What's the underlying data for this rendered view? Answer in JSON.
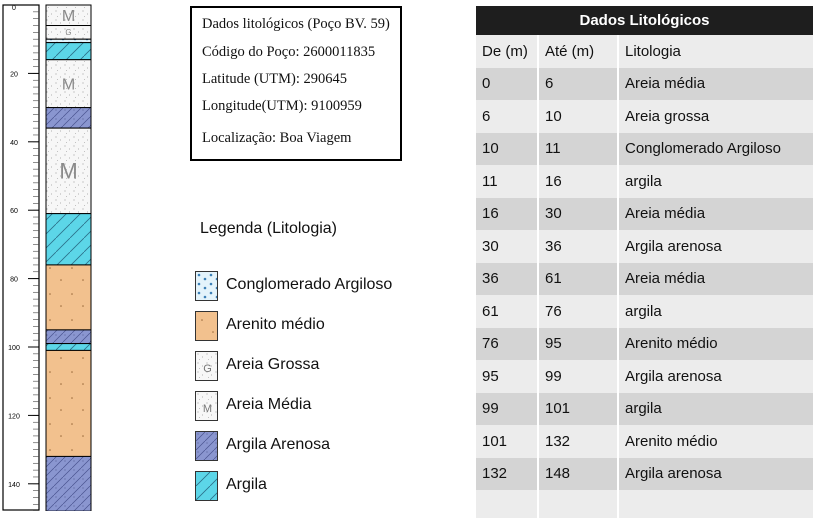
{
  "depth_column": {
    "ticks": [
      "0",
      "20",
      "40",
      "60",
      "80",
      "100",
      "120",
      "140"
    ],
    "layers": [
      {
        "from": 0,
        "to": 6,
        "pattern": "sand-medium",
        "code": "M"
      },
      {
        "from": 6,
        "to": 10,
        "pattern": "sand-coarse",
        "code": "G"
      },
      {
        "from": 10,
        "to": 11,
        "pattern": "conglomerate",
        "code": ""
      },
      {
        "from": 11,
        "to": 16,
        "pattern": "clay",
        "code": ""
      },
      {
        "from": 16,
        "to": 30,
        "pattern": "sand-medium",
        "code": "M"
      },
      {
        "from": 30,
        "to": 36,
        "pattern": "sandy-clay",
        "code": ""
      },
      {
        "from": 36,
        "to": 61,
        "pattern": "sand-medium",
        "code": "M"
      },
      {
        "from": 61,
        "to": 76,
        "pattern": "clay",
        "code": ""
      },
      {
        "from": 76,
        "to": 95,
        "pattern": "sandstone",
        "code": ""
      },
      {
        "from": 95,
        "to": 99,
        "pattern": "sandy-clay",
        "code": ""
      },
      {
        "from": 99,
        "to": 101,
        "pattern": "clay",
        "code": ""
      },
      {
        "from": 101,
        "to": 132,
        "pattern": "sandstone",
        "code": ""
      },
      {
        "from": 132,
        "to": 148,
        "pattern": "sandy-clay",
        "code": ""
      }
    ]
  },
  "info": {
    "title": "Dados litológicos (Poço BV. 59)",
    "code": "Código do Poço: 2600011835",
    "latitude": "Latitude (UTM): 290645",
    "longitude": "Longitude(UTM): 9100959",
    "location": "Localização: Boa Viagem"
  },
  "legend": {
    "title": "Legenda (Litologia)",
    "items": [
      {
        "label": "Conglomerado Argiloso",
        "pattern": "conglomerate"
      },
      {
        "label": "Arenito médio",
        "pattern": "sandstone"
      },
      {
        "label": "Areia Grossa",
        "pattern": "sand-coarse",
        "code": "G"
      },
      {
        "label": "Areia Média",
        "pattern": "sand-medium",
        "code": "M"
      },
      {
        "label": "Argila Arenosa",
        "pattern": "sandy-clay"
      },
      {
        "label": "Argila",
        "pattern": "clay"
      }
    ]
  },
  "table": {
    "title": "Dados Litológicos",
    "headers": [
      "De (m)",
      "Até (m)",
      "Litologia"
    ],
    "rows": [
      [
        "0",
        "6",
        "Areia média"
      ],
      [
        "6",
        "10",
        "Areia grossa"
      ],
      [
        "10",
        "11",
        "Conglomerado Argiloso"
      ],
      [
        "11",
        "16",
        "argila"
      ],
      [
        "16",
        "30",
        "Areia média"
      ],
      [
        "30",
        "36",
        "Argila arenosa"
      ],
      [
        "36",
        "61",
        "Areia média"
      ],
      [
        "61",
        "76",
        "argila"
      ],
      [
        "76",
        "95",
        "Arenito médio"
      ],
      [
        "95",
        "99",
        "Argila arenosa"
      ],
      [
        "99",
        "101",
        "argila"
      ],
      [
        "101",
        "132",
        "Arenito médio"
      ],
      [
        "132",
        "148",
        "Argila arenosa"
      ]
    ]
  },
  "colors": {
    "sand": "#f7f7f7",
    "sandstone": "#f2c18e",
    "clay": "#5cd6e8",
    "sandy_clay": "#8a96d0",
    "conglomerate": "#e3f3fb",
    "table_header": "#1e1e1e",
    "row_dark": "#d4d4d4",
    "row_light": "#ececec"
  }
}
